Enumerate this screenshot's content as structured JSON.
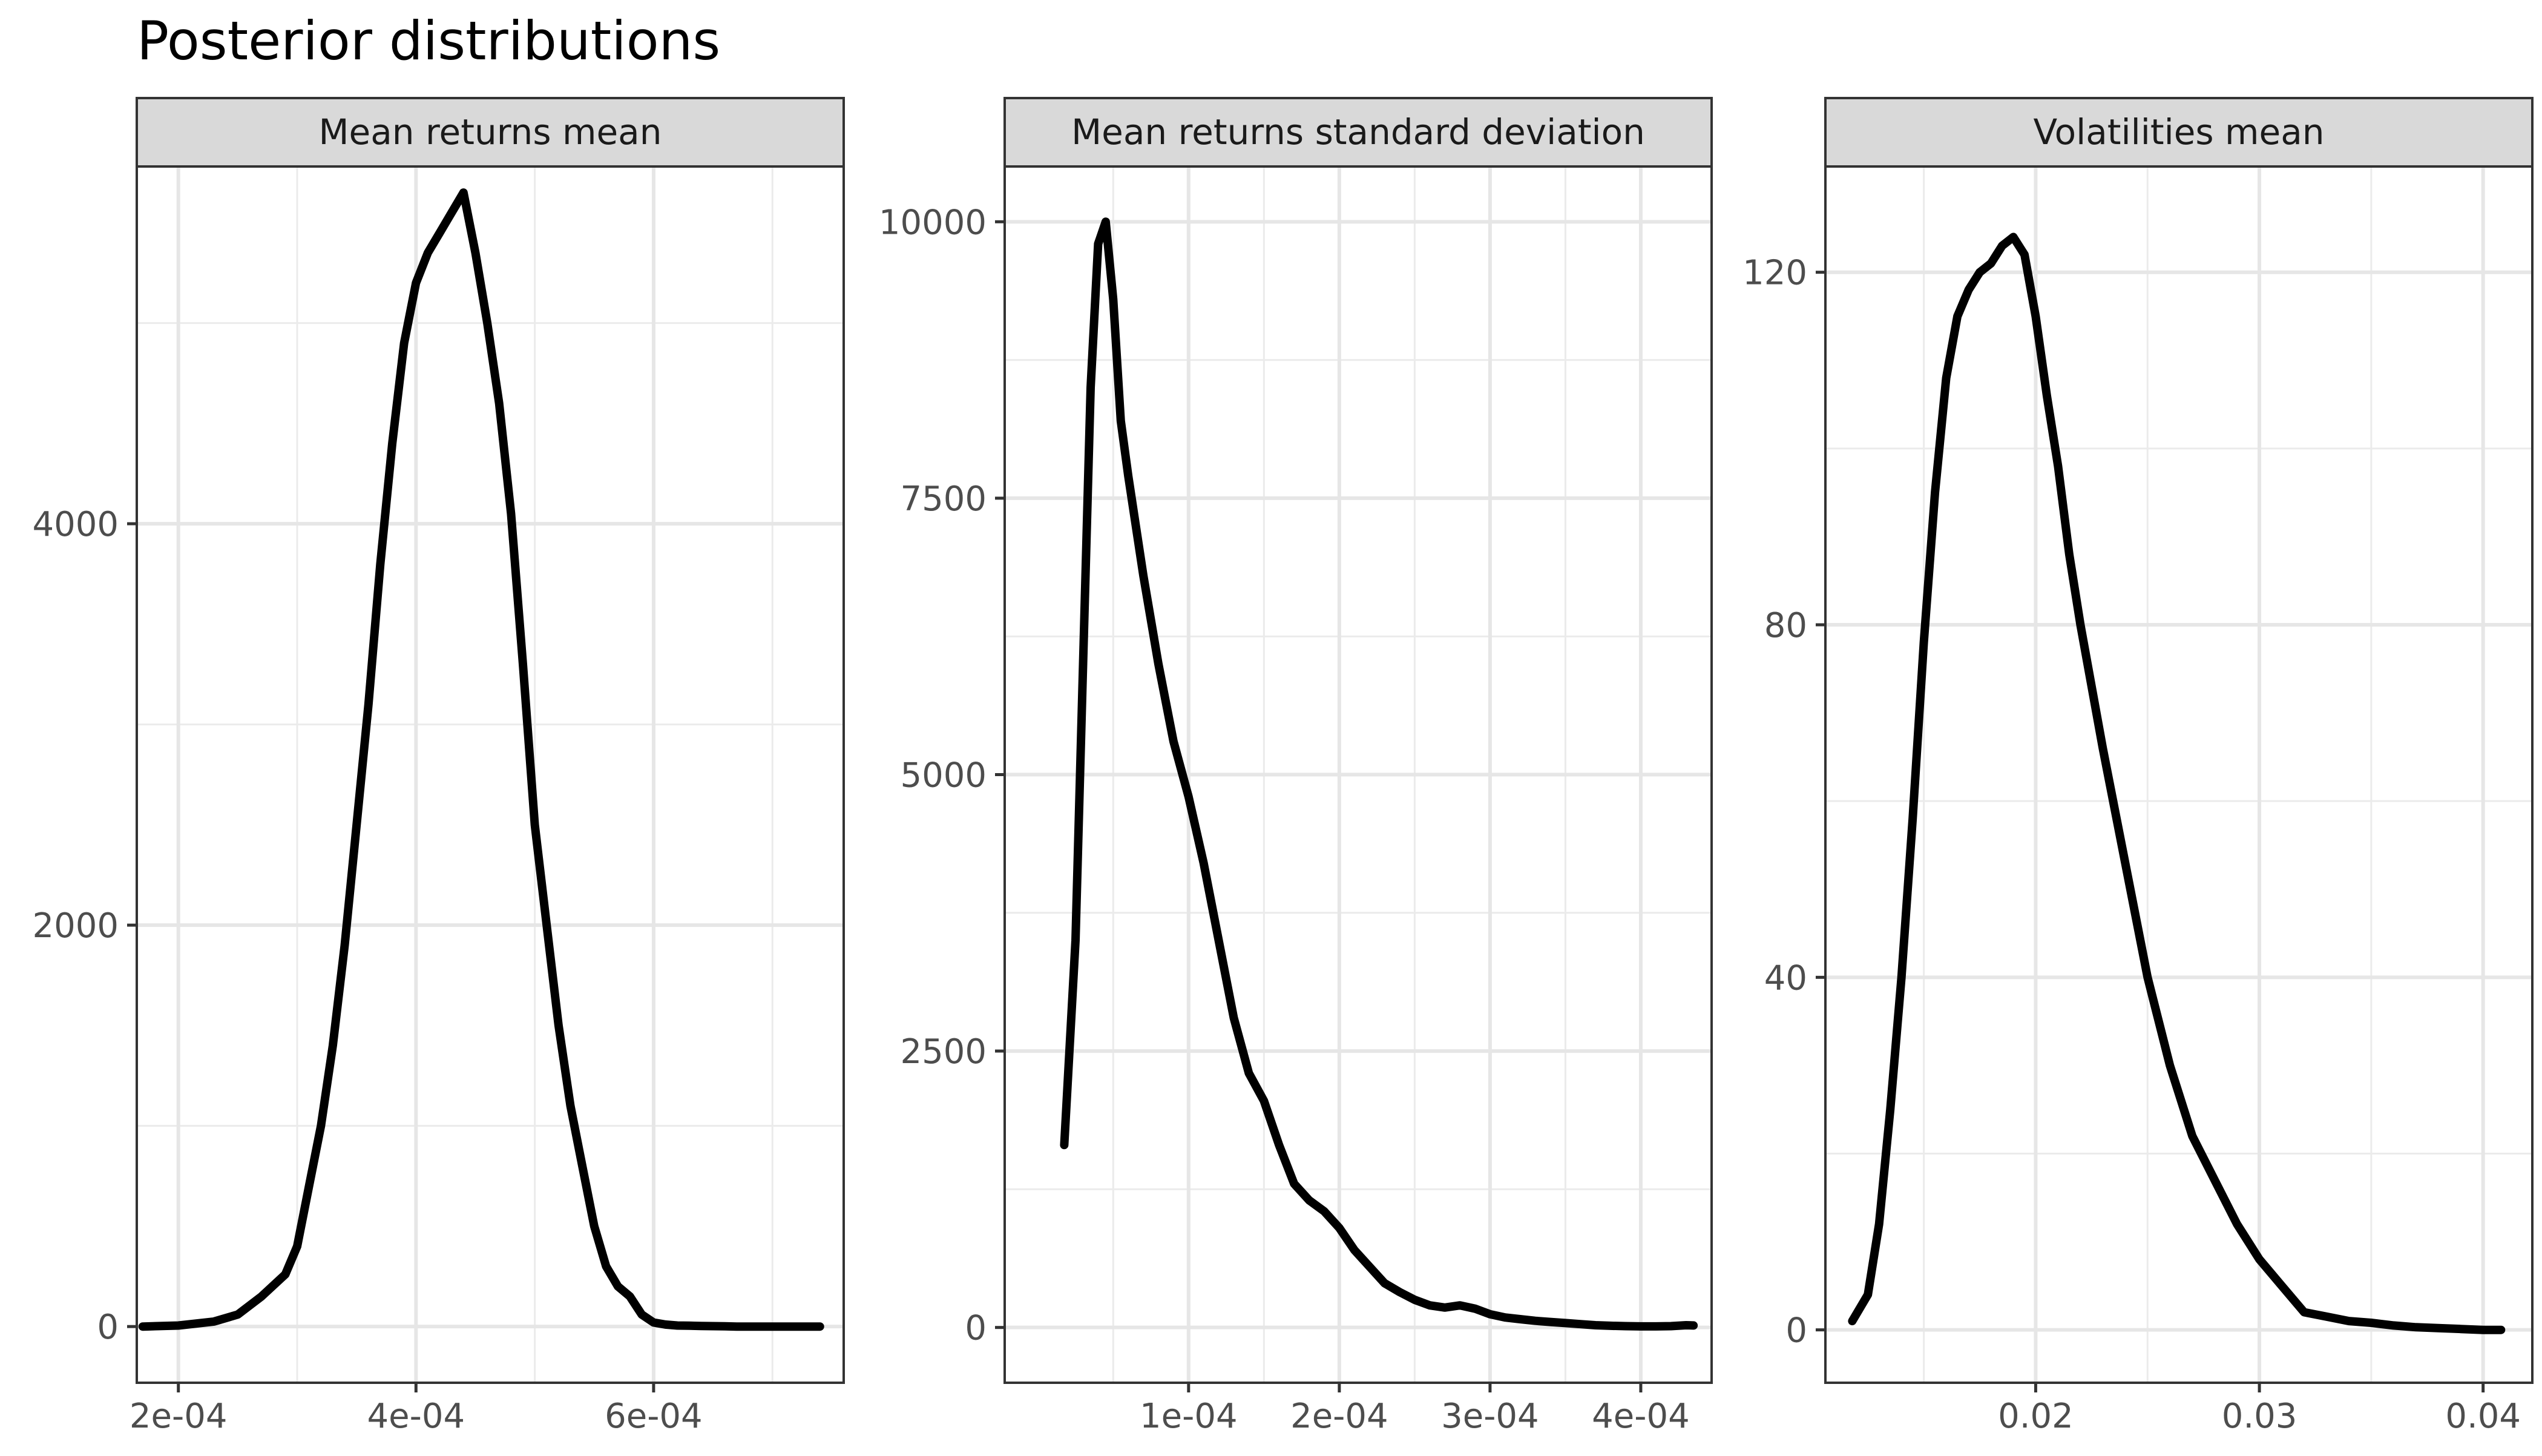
{
  "chart_data": {
    "type": "line",
    "title": "Posterior distributions",
    "xlabel": "",
    "ylabel": "",
    "grid": true,
    "facets": [
      {
        "label": "Mean returns mean",
        "xlim": [
          0.000165,
          0.00076
        ],
        "ylim": [
          -280,
          5780
        ],
        "x_ticks": [
          0.0002,
          0.0004,
          0.0006
        ],
        "x_tick_labels": [
          "2e-04",
          "4e-04",
          "6e-04"
        ],
        "y_ticks": [
          0,
          2000,
          4000
        ],
        "y_tick_labels": [
          "0",
          "2000",
          "4000"
        ],
        "x": [
          0.00017,
          0.0002,
          0.00023,
          0.00025,
          0.00027,
          0.00029,
          0.0003,
          0.00031,
          0.00032,
          0.00033,
          0.00034,
          0.00035,
          0.00036,
          0.00037,
          0.00038,
          0.00039,
          0.0004,
          0.00041,
          0.00042,
          0.00043,
          0.00044,
          0.00045,
          0.00046,
          0.00047,
          0.00048,
          0.00049,
          0.0005,
          0.00051,
          0.00052,
          0.00053,
          0.00054,
          0.00055,
          0.00056,
          0.00057,
          0.00058,
          0.00059,
          0.0006,
          0.00061,
          0.00062,
          0.00063,
          0.00064,
          0.00065,
          0.00066,
          0.00067,
          0.00068,
          0.0007,
          0.00072,
          0.00074
        ],
        "y": [
          0,
          5,
          25,
          60,
          150,
          260,
          400,
          700,
          1000,
          1400,
          1900,
          2500,
          3100,
          3800,
          4400,
          4900,
          5200,
          5350,
          5450,
          5550,
          5650,
          5350,
          5000,
          4600,
          4050,
          3300,
          2500,
          2000,
          1500,
          1100,
          800,
          500,
          300,
          200,
          150,
          60,
          20,
          10,
          5,
          4,
          3,
          2,
          1,
          0,
          0,
          0,
          0,
          0
        ]
      },
      {
        "label": "Mean returns standard deviation",
        "xlim": [
          -2.2e-05,
          0.000447
        ],
        "ylim": [
          -500,
          10500
        ],
        "x_ticks": [
          0.0001,
          0.0002,
          0.0003,
          0.0004
        ],
        "x_tick_labels": [
          "1e-04",
          "2e-04",
          "3e-04",
          "4e-04"
        ],
        "y_ticks": [
          0,
          2500,
          5000,
          7500,
          10000
        ],
        "y_tick_labels": [
          "0",
          "2500",
          "5000",
          "7500",
          "10000"
        ],
        "x": [
          1.75e-05,
          2.5e-05,
          3e-05,
          3.5e-05,
          4e-05,
          4.5e-05,
          5e-05,
          5.5e-05,
          6e-05,
          7e-05,
          8e-05,
          9e-05,
          0.0001,
          0.00011,
          0.00012,
          0.00013,
          0.00014,
          0.00015,
          0.00016,
          0.00017,
          0.00018,
          0.00019,
          0.0002,
          0.00021,
          0.00022,
          0.00023,
          0.00024,
          0.00025,
          0.00026,
          0.00027,
          0.00028,
          0.00029,
          0.0003,
          0.00031,
          0.00032,
          0.00033,
          0.00034,
          0.00035,
          0.00036,
          0.00037,
          0.00038,
          0.00039,
          0.0004,
          0.00041,
          0.00042,
          0.00043,
          0.000435
        ],
        "y": [
          1650,
          3500,
          6000,
          8500,
          9800,
          10000,
          9300,
          8200,
          7700,
          6800,
          6000,
          5300,
          4800,
          4200,
          3500,
          2800,
          2300,
          2050,
          1650,
          1300,
          1150,
          1050,
          900,
          700,
          550,
          400,
          320,
          250,
          200,
          180,
          200,
          170,
          120,
          90,
          75,
          60,
          50,
          40,
          30,
          20,
          15,
          12,
          10,
          10,
          12,
          20,
          18
        ]
      },
      {
        "label": "Volatilities mean",
        "xlim": [
          0.0106,
          0.0422
        ],
        "ylim": [
          -6,
          132
        ],
        "x_ticks": [
          0.02,
          0.03,
          0.04
        ],
        "x_tick_labels": [
          "0.02",
          "0.03",
          "0.04"
        ],
        "y_ticks": [
          0,
          40,
          80,
          120
        ],
        "y_tick_labels": [
          "0",
          "40",
          "80",
          "120"
        ],
        "x": [
          0.0118,
          0.0125,
          0.013,
          0.0135,
          0.014,
          0.0145,
          0.015,
          0.0155,
          0.016,
          0.0165,
          0.017,
          0.0175,
          0.018,
          0.0185,
          0.019,
          0.0195,
          0.02,
          0.0205,
          0.021,
          0.0215,
          0.022,
          0.023,
          0.024,
          0.025,
          0.026,
          0.027,
          0.028,
          0.029,
          0.03,
          0.031,
          0.032,
          0.033,
          0.034,
          0.035,
          0.036,
          0.037,
          0.038,
          0.039,
          0.04,
          0.0408
        ],
        "y": [
          1,
          4,
          12,
          25,
          40,
          58,
          78,
          95,
          108,
          115,
          118,
          120,
          121,
          123,
          124,
          122,
          115,
          106,
          98,
          88,
          80,
          66,
          53,
          40,
          30,
          22,
          17,
          12,
          8,
          5,
          2,
          1.5,
          1,
          0.8,
          0.5,
          0.3,
          0.2,
          0.1,
          0,
          0
        ]
      }
    ]
  }
}
